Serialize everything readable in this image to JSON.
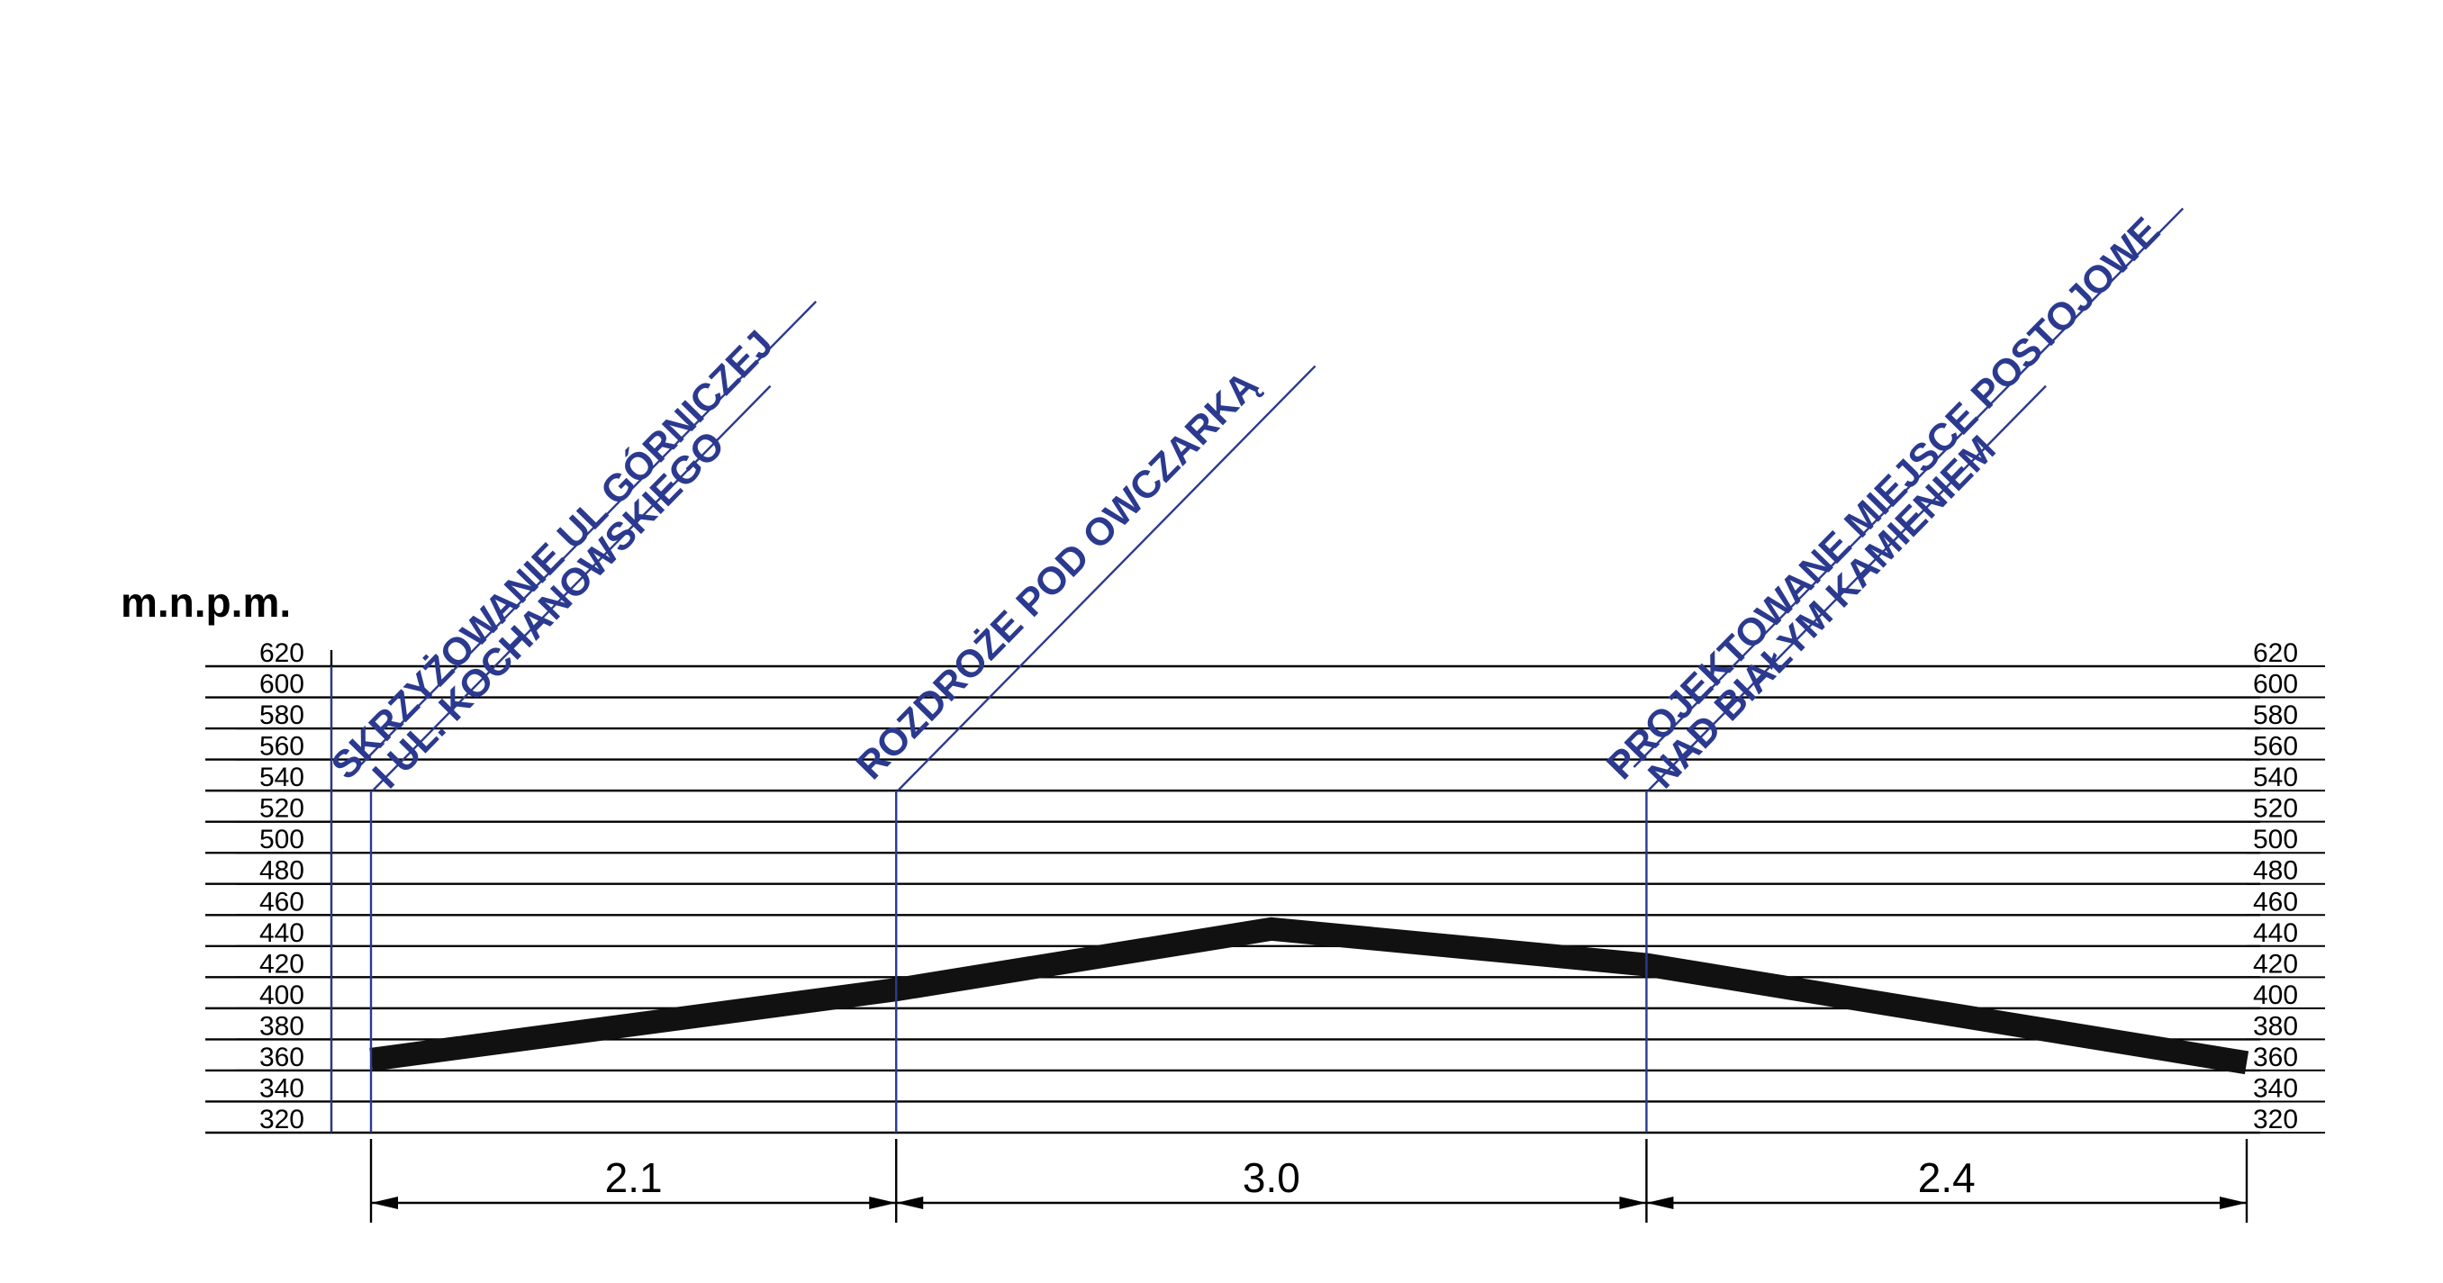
{
  "chart_data": {
    "type": "line",
    "ylabel": "m.n.p.m.",
    "ylim": [
      320,
      620
    ],
    "yticks": [
      "620",
      "600",
      "580",
      "560",
      "540",
      "520",
      "500",
      "480",
      "460",
      "440",
      "420",
      "400",
      "380",
      "360",
      "340",
      "320"
    ],
    "x_unit": "km",
    "profile": [
      {
        "x": 0.0,
        "y": 367
      },
      {
        "x": 2.1,
        "y": 412
      },
      {
        "x": 3.6,
        "y": 451
      },
      {
        "x": 5.1,
        "y": 428
      },
      {
        "x": 7.5,
        "y": 365
      }
    ],
    "waypoints": [
      {
        "x": 0.0,
        "lines": [
          "SKRZYŻOWANIE UL GÓRNICZEJ",
          "I UL. KOCHANOWSKIEGO"
        ]
      },
      {
        "x": 2.1,
        "lines": [
          "ROZDROŻE POD OWCZARKĄ"
        ]
      },
      {
        "x": 5.1,
        "lines": [
          "PROJEKTOWANE MIEJSCE POSTOJOWE",
          "NAD BIAŁYM KAMIENIEM"
        ]
      }
    ],
    "segments": [
      {
        "from": 0.0,
        "to": 2.1,
        "label": "2.1"
      },
      {
        "from": 2.1,
        "to": 5.1,
        "label": "3.0"
      },
      {
        "from": 5.1,
        "to": 7.5,
        "label": "2.4"
      }
    ],
    "grid": true
  },
  "colors": {
    "profile": "#111111",
    "waypoint": "#2b3a8f",
    "grid": "#000000"
  }
}
